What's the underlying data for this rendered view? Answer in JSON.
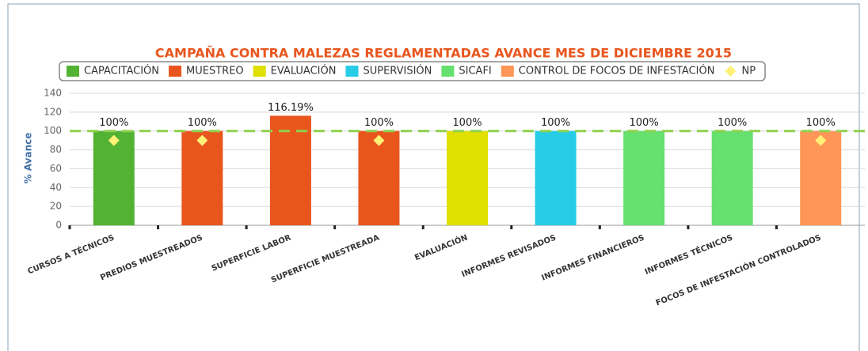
{
  "chart_data": {
    "type": "bar",
    "title": "CAMPAÑA CONTRA MALEZAS REGLAMENTADAS AVANCE MES DE DICIEMBRE 2015",
    "y_label": "% Avance",
    "categories": [
      "CURSOS A TÉCNICOS",
      "PREDIOS MUESTREADOS",
      "SUPERFICIE LABOR",
      "SUPERFICIE MUESTREADA",
      "EVALUACIÓN",
      "INFORMES REVISADOS",
      "INFORMES FINANCIEROS",
      "INFORMES TÉCNICOS",
      "FOCOS DE INFESTACIÓN CONTROLADOS"
    ],
    "series": [
      {
        "name": "CAPACITACIÓN",
        "color": "#52b233",
        "values": [
          100,
          null,
          null,
          null,
          null,
          null,
          null,
          null,
          null
        ],
        "value_labels": [
          "100%",
          null,
          null,
          null,
          null,
          null,
          null,
          null,
          null
        ]
      },
      {
        "name": "MUESTREO",
        "color": "#e8561e",
        "values": [
          null,
          100,
          116.19,
          100,
          null,
          null,
          null,
          null,
          null
        ],
        "value_labels": [
          null,
          "100%",
          "116.19%",
          "100%",
          null,
          null,
          null,
          null,
          null
        ]
      },
      {
        "name": "EVALUACIÓN",
        "color": "#dfe000",
        "values": [
          null,
          null,
          null,
          null,
          100,
          null,
          null,
          null,
          null
        ],
        "value_labels": [
          null,
          null,
          null,
          null,
          "100%",
          null,
          null,
          null,
          null
        ]
      },
      {
        "name": "SUPERVISIÓN",
        "color": "#27cde6",
        "values": [
          null,
          null,
          null,
          null,
          null,
          100,
          null,
          null,
          null
        ],
        "value_labels": [
          null,
          null,
          null,
          null,
          null,
          "100%",
          null,
          null,
          null
        ]
      },
      {
        "name": "SICAFI",
        "color": "#66e06f",
        "values": [
          null,
          null,
          null,
          null,
          null,
          null,
          100,
          100,
          null
        ],
        "value_labels": [
          null,
          null,
          null,
          null,
          null,
          null,
          "100%",
          "100%",
          null
        ]
      },
      {
        "name": "CONTROL DE FOCOS DE INFESTACIÓN",
        "color": "#ff9657",
        "values": [
          null,
          null,
          null,
          null,
          null,
          null,
          null,
          null,
          100
        ],
        "value_labels": [
          null,
          null,
          null,
          null,
          null,
          null,
          null,
          null,
          "100%"
        ]
      },
      {
        "name": "NP",
        "color": "#fff176",
        "marker": "diamond",
        "values": [
          90,
          90,
          null,
          90,
          null,
          null,
          null,
          null,
          90
        ]
      }
    ],
    "reference_line": {
      "value": 100,
      "color": "#8fd14f"
    },
    "ylim": [
      0,
      140
    ],
    "yticks": [
      0,
      20,
      40,
      60,
      80,
      100,
      120,
      140
    ],
    "grid": true
  }
}
